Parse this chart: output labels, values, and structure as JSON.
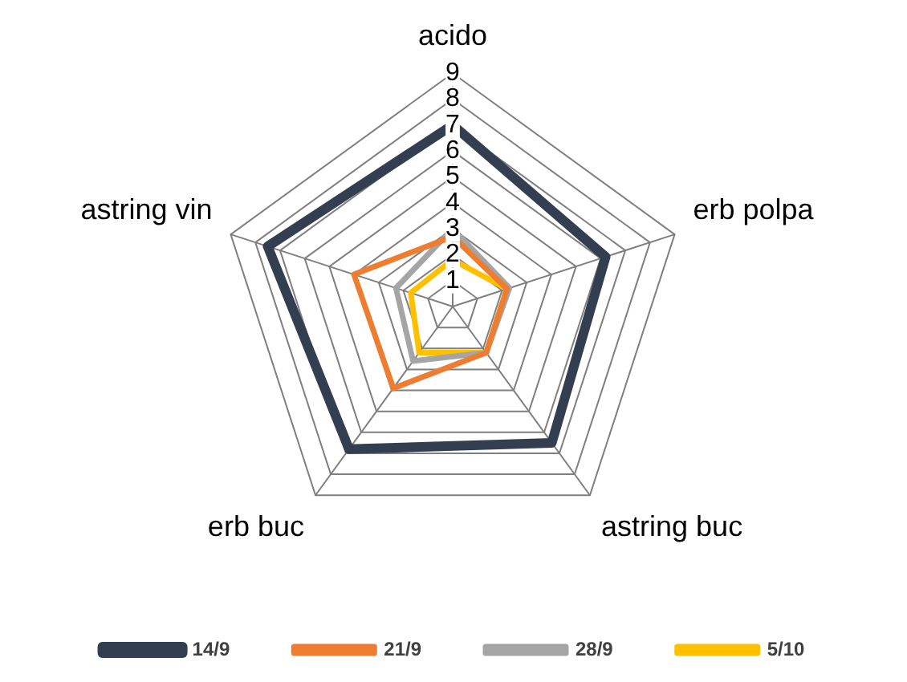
{
  "chart_data": {
    "type": "radar",
    "categories": [
      "acido",
      "erb polpa",
      "astring buc",
      "erb buc",
      "astring vin"
    ],
    "series": [
      {
        "name": "14/9",
        "color": "#333f50",
        "values": [
          7,
          6.2,
          6.5,
          6.8,
          7.5
        ]
      },
      {
        "name": "21/9",
        "color": "#ed7d31",
        "values": [
          2.7,
          2.2,
          2.2,
          3.9,
          4
        ]
      },
      {
        "name": "28/9",
        "color": "#a5a5a5",
        "values": [
          3,
          2.3,
          2.2,
          2.6,
          2.3
        ]
      },
      {
        "name": "5/10",
        "color": "#ffc000",
        "values": [
          1.8,
          2.2,
          2.2,
          2.2,
          1.7
        ]
      }
    ],
    "ylim": [
      0,
      9
    ],
    "yticks": [
      1,
      2,
      3,
      4,
      5,
      6,
      7,
      8,
      9
    ],
    "grid": true,
    "legend": "bottom",
    "marker": "none"
  }
}
